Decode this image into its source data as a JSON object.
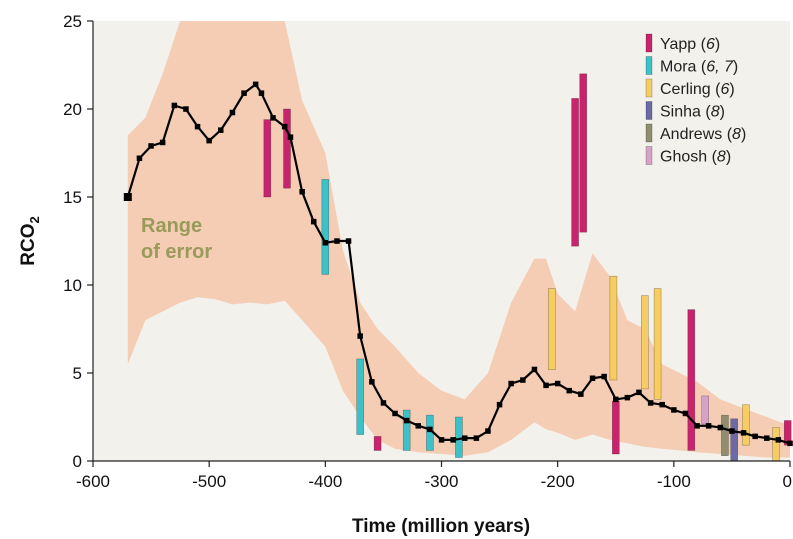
{
  "chart_data": {
    "type": "line",
    "xlabel": "Time (million years)",
    "ylabel": "RCO",
    "ylabel_sub": "2",
    "xlim": [
      -600,
      0
    ],
    "ylim": [
      0,
      25
    ],
    "xticks": [
      -600,
      -500,
      -400,
      -300,
      -200,
      -100,
      0
    ],
    "yticks": [
      0,
      5,
      10,
      15,
      20,
      25
    ],
    "grid": false,
    "legend_placement": "top-right",
    "annotation": [
      "Range",
      "of error"
    ],
    "colors": {
      "line": "#000000",
      "band": "#f5cdb4",
      "background": "#f3f1ec",
      "Yapp": "#c8246e",
      "Mora": "#3cc1c8",
      "Cerling": "#f6cd63",
      "Sinha": "#6b6aa6",
      "Andrews": "#8f8f70",
      "Ghosh": "#d6a2c6",
      "annotation": "#9a9a5a"
    },
    "series": [
      {
        "x": [
          -570,
          -560,
          -550,
          -540,
          -530,
          -520,
          -510,
          -500,
          -490,
          -480,
          -470,
          -460,
          -455,
          -445,
          -435,
          -430,
          -420,
          -410,
          -400,
          -390,
          -380,
          -370,
          -360,
          -350,
          -340,
          -330,
          -320,
          -310,
          -300,
          -290,
          -280,
          -270,
          -260,
          -250,
          -240,
          -230,
          -220,
          -210,
          -200,
          -190,
          -180,
          -170,
          -160,
          -150,
          -140,
          -130,
          -120,
          -110,
          -100,
          -90,
          -80,
          -70,
          -60,
          -50,
          -40,
          -30,
          -20,
          -10,
          0
        ],
        "values": [
          15.0,
          17.2,
          17.9,
          18.1,
          20.2,
          20.0,
          19.0,
          18.2,
          18.8,
          19.8,
          20.9,
          21.4,
          20.9,
          19.5,
          19.0,
          18.4,
          15.3,
          13.6,
          12.4,
          12.5,
          12.5,
          7.1,
          4.5,
          3.3,
          2.7,
          2.3,
          2.0,
          1.8,
          1.2,
          1.2,
          1.3,
          1.3,
          1.7,
          3.2,
          4.4,
          4.6,
          5.2,
          4.3,
          4.4,
          4.0,
          3.8,
          4.7,
          4.8,
          3.5,
          3.6,
          3.9,
          3.3,
          3.2,
          2.9,
          2.7,
          2.0,
          2.0,
          1.9,
          1.7,
          1.6,
          1.4,
          1.3,
          1.2,
          1.0
        ]
      }
    ],
    "error_band": {
      "x": [
        -570,
        -555,
        -540,
        -525,
        -510,
        -495,
        -480,
        -465,
        -450,
        -435,
        -420,
        -400,
        -385,
        -370,
        -355,
        -340,
        -320,
        -300,
        -280,
        -260,
        -240,
        -220,
        -210,
        -200,
        -185,
        -170,
        -155,
        -140,
        -125,
        -110,
        -95,
        -80,
        -60,
        -40,
        -20,
        0
      ],
      "upper": [
        18.5,
        19.5,
        22.0,
        25.0,
        25.0,
        25.0,
        25.0,
        25.0,
        25.0,
        25.0,
        20.5,
        17.5,
        12.0,
        9.0,
        7.5,
        6.5,
        5.0,
        4.0,
        3.5,
        5.0,
        9.0,
        11.5,
        11.5,
        9.5,
        8.5,
        11.8,
        10.5,
        8.0,
        7.5,
        5.5,
        5.0,
        4.5,
        3.5,
        3.0,
        2.5,
        2.0
      ],
      "lower": [
        5.5,
        8.0,
        8.5,
        9.0,
        9.3,
        9.2,
        8.9,
        9.0,
        8.9,
        9.1,
        8.0,
        6.5,
        4.0,
        2.5,
        1.2,
        0.7,
        0.5,
        0.4,
        0.3,
        0.5,
        1.2,
        2.2,
        1.8,
        1.6,
        1.2,
        1.5,
        1.2,
        1.0,
        0.8,
        0.7,
        0.6,
        0.5,
        0.4,
        0.3,
        0.2,
        0.2
      ]
    },
    "proxy_bars": [
      {
        "source": "Yapp",
        "x": -450,
        "low": 15.0,
        "high": 19.4
      },
      {
        "source": "Yapp",
        "x": -433,
        "low": 15.5,
        "high": 20.0
      },
      {
        "source": "Yapp",
        "x": -355,
        "low": 0.6,
        "high": 1.4
      },
      {
        "source": "Yapp",
        "x": -185,
        "low": 12.2,
        "high": 20.6
      },
      {
        "source": "Yapp",
        "x": -178,
        "low": 13.0,
        "high": 22.0
      },
      {
        "source": "Yapp",
        "x": -150,
        "low": 0.4,
        "high": 3.4
      },
      {
        "source": "Yapp",
        "x": -85,
        "low": 0.6,
        "high": 8.6
      },
      {
        "source": "Yapp",
        "x": -2,
        "low": 0.9,
        "high": 2.3
      },
      {
        "source": "Mora",
        "x": -400,
        "low": 10.6,
        "high": 16.0
      },
      {
        "source": "Mora",
        "x": -370,
        "low": 1.5,
        "high": 5.8
      },
      {
        "source": "Mora",
        "x": -330,
        "low": 0.6,
        "high": 2.9
      },
      {
        "source": "Mora",
        "x": -310,
        "low": 0.6,
        "high": 2.6
      },
      {
        "source": "Mora",
        "x": -285,
        "low": 0.2,
        "high": 2.5
      },
      {
        "source": "Cerling",
        "x": -205,
        "low": 5.2,
        "high": 9.8
      },
      {
        "source": "Cerling",
        "x": -152,
        "low": 4.6,
        "high": 10.5
      },
      {
        "source": "Cerling",
        "x": -125,
        "low": 4.1,
        "high": 9.4
      },
      {
        "source": "Cerling",
        "x": -114,
        "low": 3.5,
        "high": 9.8
      },
      {
        "source": "Cerling",
        "x": -38,
        "low": 0.9,
        "high": 3.2
      },
      {
        "source": "Cerling",
        "x": -12,
        "low": 0.0,
        "high": 1.9
      },
      {
        "source": "Sinha",
        "x": -48,
        "low": 0.0,
        "high": 2.4
      },
      {
        "source": "Andrews",
        "x": -56,
        "low": 0.3,
        "high": 2.6
      },
      {
        "source": "Ghosh",
        "x": -73,
        "low": 2.1,
        "high": 3.7
      }
    ],
    "legend": [
      {
        "key": "Yapp",
        "name": "Yapp",
        "ref": "6"
      },
      {
        "key": "Mora",
        "name": "Mora",
        "ref": "6, 7"
      },
      {
        "key": "Cerling",
        "name": "Cerling",
        "ref": "6"
      },
      {
        "key": "Sinha",
        "name": "Sinha",
        "ref": "8"
      },
      {
        "key": "Andrews",
        "name": "Andrews",
        "ref": "8"
      },
      {
        "key": "Ghosh",
        "name": "Ghosh",
        "ref": "8"
      }
    ]
  }
}
